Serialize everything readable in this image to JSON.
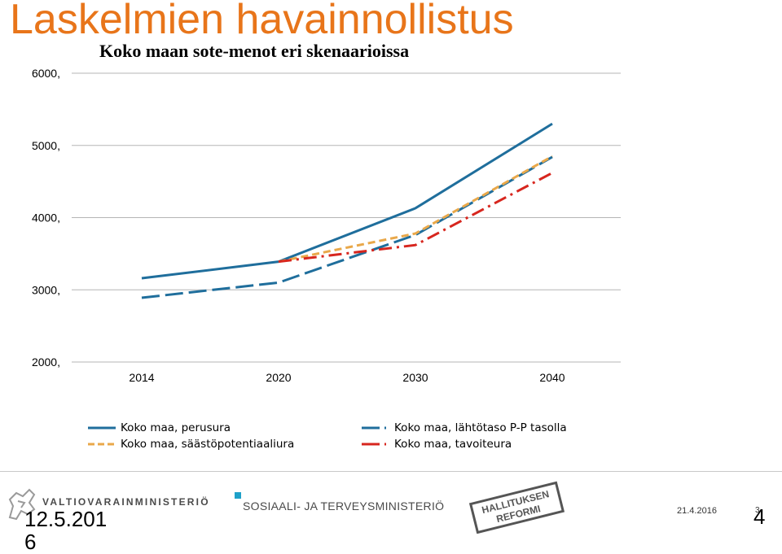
{
  "slide_title": "Laskelmien havainnollistus",
  "chart_data": {
    "type": "line",
    "title": "Koko maan sote-menot eri skenaarioissa",
    "xlabel": "",
    "ylabel": "",
    "x": [
      2014,
      2020,
      2030,
      2040
    ],
    "xticks": [
      "2014",
      "2020",
      "2030",
      "2040"
    ],
    "yticks": [
      "2000,",
      "3000,",
      "4000,",
      "5000,",
      "6000,"
    ],
    "ylim": [
      2000,
      6000
    ],
    "grid": true,
    "legend_position": "bottom",
    "series": [
      {
        "name": "Koko maa, perusura",
        "values": [
          3160,
          3390,
          4130,
          5300
        ],
        "color": "#1f6e9c",
        "dash": "solid"
      },
      {
        "name": "Koko maa, lähtötaso P-P tasolla",
        "values": [
          2890,
          3100,
          3760,
          4840
        ],
        "color": "#1f6e9c",
        "dash": "longdash"
      },
      {
        "name": "Koko maa, säästöpotentiaaliura",
        "values": [
          null,
          3390,
          3780,
          4850
        ],
        "color": "#e9a84a",
        "dash": "dash"
      },
      {
        "name": "Koko maa, tavoiteura",
        "values": [
          null,
          3390,
          3620,
          4620
        ],
        "color": "#d7261e",
        "dash": "dashdot"
      }
    ]
  },
  "footer": {
    "ministry_vm": "VALTIOVARAINMINISTERIÖ",
    "ministry_stm": "SOSIAALI- JA TERVEYSMINISTERIÖ",
    "reform_line1": "HALLITUKSEN",
    "reform_line2": "REFORMI",
    "date_left": "12.5.2016",
    "date_right": "21.4.2016",
    "page_number": "4",
    "page_number_small": "3"
  }
}
